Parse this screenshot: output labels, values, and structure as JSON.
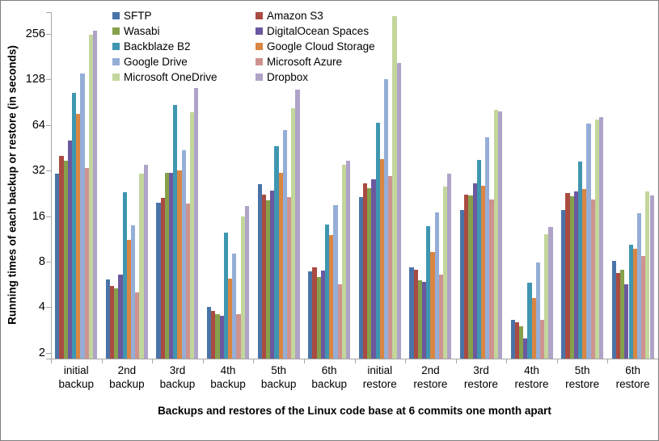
{
  "colors": {
    "background": "#FFFFFF",
    "border": "#7F7F7F",
    "axis": "#A6A6A6",
    "text": "#000000"
  },
  "chart_data": {
    "type": "bar",
    "y_scale": "log2",
    "grid": "off",
    "legend_position": "top-two-columns",
    "xlabel": "Backups and restores of the Linux code base at 6 commits one month apart",
    "ylabel": "Running times of each backup or restore (in seconds)",
    "y_ticks": [
      256,
      128,
      64,
      32,
      16,
      8,
      4,
      2
    ],
    "y_axis_baseline_value": 1.83,
    "y_axis_top_value": 360,
    "categories": [
      {
        "line1": "initial",
        "line2": "backup"
      },
      {
        "line1": "2nd",
        "line2": "backup"
      },
      {
        "line1": "3rd",
        "line2": "backup"
      },
      {
        "line1": "4th",
        "line2": "backup"
      },
      {
        "line1": "5th",
        "line2": "backup"
      },
      {
        "line1": "6th",
        "line2": "backup"
      },
      {
        "line1": "initial",
        "line2": "restore"
      },
      {
        "line1": "2nd",
        "line2": "restore"
      },
      {
        "line1": "3rd",
        "line2": "restore"
      },
      {
        "line1": "4th",
        "line2": "restore"
      },
      {
        "line1": "5th",
        "line2": "restore"
      },
      {
        "line1": "6th",
        "line2": "restore"
      }
    ],
    "series": [
      {
        "name": "SFTP",
        "color": "#4A74A8",
        "values": [
          30.5,
          6.1,
          19.6,
          4.0,
          26.0,
          6.9,
          21.5,
          7.3,
          17.6,
          3.3,
          17.5,
          8.1
        ]
      },
      {
        "name": "Amazon S3",
        "color": "#AA4B42",
        "values": [
          40.0,
          5.5,
          21.0,
          3.8,
          22.2,
          7.3,
          26.4,
          7.1,
          22.2,
          3.2,
          22.7,
          6.7
        ]
      },
      {
        "name": "Wasabi",
        "color": "#86A04C",
        "values": [
          37.3,
          5.3,
          31.0,
          3.6,
          20.4,
          6.3,
          24.6,
          6.0,
          22.0,
          3.0,
          21.7,
          7.1
        ]
      },
      {
        "name": "DigitalOcean Spaces",
        "color": "#6B589F",
        "values": [
          50.7,
          6.6,
          31.0,
          3.5,
          23.6,
          7.0,
          28.0,
          5.9,
          26.4,
          2.5,
          23.3,
          5.7
        ]
      },
      {
        "name": "Backblaze B2",
        "color": "#3F96B0",
        "values": [
          105.0,
          23.0,
          86.5,
          12.5,
          46.4,
          14.0,
          66.5,
          13.7,
          37.8,
          5.8,
          36.7,
          10.4
        ]
      },
      {
        "name": "Google Cloud Storage",
        "color": "#D98643",
        "values": [
          76.0,
          11.2,
          32.0,
          6.2,
          31.0,
          12.0,
          38.2,
          9.3,
          25.3,
          4.6,
          24.3,
          9.7
        ]
      },
      {
        "name": "Google Drive",
        "color": "#95AED8",
        "values": [
          140.0,
          13.9,
          43.6,
          9.1,
          59.3,
          18.8,
          128.0,
          17.0,
          52.9,
          7.9,
          65.6,
          16.7
        ]
      },
      {
        "name": "Microsoft Azure",
        "color": "#CE938F",
        "values": [
          33.4,
          5.0,
          19.4,
          3.6,
          21.3,
          5.7,
          29.5,
          6.6,
          20.6,
          3.3,
          20.6,
          8.7
        ]
      },
      {
        "name": "Microsoft OneDrive",
        "color": "#C3D69B",
        "values": [
          252.0,
          30.4,
          78.0,
          16.0,
          82.4,
          34.8,
          335.0,
          25.1,
          81.0,
          12.1,
          70.0,
          23.3
        ]
      },
      {
        "name": "Dropbox",
        "color": "#AFA3C8",
        "values": [
          270.0,
          34.8,
          112.0,
          18.7,
          109.0,
          37.0,
          164.0,
          30.4,
          79.0,
          13.6,
          72.0,
          22.0
        ]
      }
    ],
    "legend_columns": [
      [
        0,
        2,
        4,
        6,
        8
      ],
      [
        1,
        3,
        5,
        7,
        9
      ]
    ]
  }
}
